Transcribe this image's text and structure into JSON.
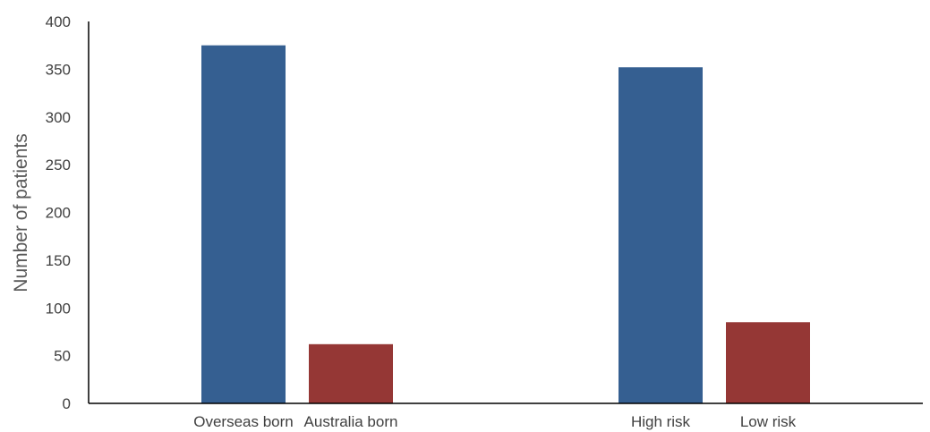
{
  "chart_data": {
    "type": "bar",
    "title": "",
    "xlabel": "",
    "ylabel": "Number of patients",
    "ylim": [
      0,
      400
    ],
    "yticks": [
      0,
      50,
      100,
      150,
      200,
      250,
      300,
      350,
      400
    ],
    "grid": false,
    "legend": "none",
    "groups": [
      {
        "bars": [
          {
            "label": "Overseas born",
            "value": 375,
            "color": "#355f91"
          },
          {
            "label": "Australia born",
            "value": 62,
            "color": "#953735"
          }
        ]
      },
      {
        "bars": [
          {
            "label": "High risk",
            "value": 352,
            "color": "#355f91"
          },
          {
            "label": "Low risk",
            "value": 85,
            "color": "#953735"
          }
        ]
      }
    ]
  }
}
